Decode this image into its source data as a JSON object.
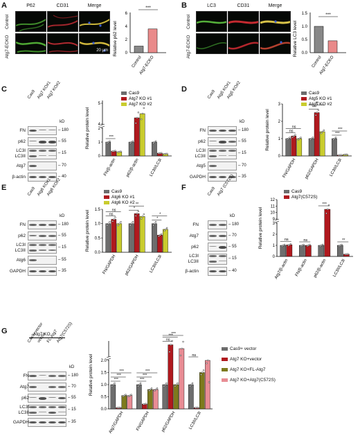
{
  "panels": {
    "A": {
      "letter": "A",
      "headers": [
        "P62",
        "CD31",
        "Merge"
      ],
      "rows": [
        "Control",
        "Atg7-ECKO"
      ],
      "scale": "20 μm",
      "chart": {
        "ylabel": "Relative p62 level",
        "ticks": [
          "0",
          "2",
          "4",
          "6"
        ],
        "cats": [
          "Control",
          "Atg7-ECKO"
        ],
        "sig": "***"
      }
    },
    "B": {
      "letter": "B",
      "headers": [
        "LC3",
        "CD31",
        "Merge"
      ],
      "rows": [
        "Control",
        "Atg7-ECKO"
      ],
      "chart": {
        "ylabel": "Relative LC3 level",
        "ticks": [
          "0.0",
          "0.5",
          "1.0",
          "1.5"
        ],
        "cats": [
          "Control",
          "Atg7-ECKO"
        ],
        "sig": "***"
      }
    },
    "C": {
      "letter": "C",
      "lanes": [
        "Cas9",
        "Atg7 KO#1",
        "Atg7 KO#2"
      ],
      "blots": [
        "FN",
        "p62",
        "LC3I",
        "LC3II",
        "Atg7",
        "β-actin"
      ],
      "kd": [
        "kD",
        "– 180",
        "– 55",
        "– 15",
        "– 70",
        "– 40"
      ],
      "legend": [
        "Cas9",
        "Atg7 KO #1",
        "Atg7 KO #2"
      ]
    },
    "D": {
      "letter": "D",
      "lanes": [
        "Cas9",
        "Atg5 KO#1",
        "Atg5 KO#2"
      ],
      "blots": [
        "FN",
        "p62",
        "LC3I",
        "LC3II",
        "Atg5",
        "GAPDH"
      ],
      "kd": [
        "kD",
        "– 180",
        "– 55",
        "– 15",
        "– 70",
        "– 35"
      ],
      "legend": [
        "Cas9",
        "Atg5 KO #1",
        "Atg5 KO #2"
      ]
    },
    "E": {
      "letter": "E",
      "lanes": [
        "Cas9",
        "Atg6 KO#1",
        "Atg6 KO#2"
      ],
      "blots": [
        "FN",
        "p62",
        "LC3I",
        "LC3II",
        "Atg6",
        "GAPDH"
      ],
      "kd": [
        "kD",
        "– 180",
        "– 55",
        "– 15",
        "– 55",
        "– 35"
      ],
      "legend": [
        "Cas9",
        "Atg6 KO #1",
        "Atg6 KO #2"
      ]
    },
    "F": {
      "letter": "F",
      "lanes": [
        "Cas9",
        "Atg7 (C572S)"
      ],
      "blots": [
        "FN",
        "Atg7",
        "p62",
        "LC3I",
        "LC3II",
        "β-actin"
      ],
      "kd": [
        "kD",
        "– 180",
        "– 70",
        "– 55",
        "– 15",
        "– 40"
      ],
      "legend": [
        "Cas9",
        "Atg7(C572S)"
      ]
    },
    "G": {
      "letter": "G",
      "group": "Atg7 KO",
      "lanes": [
        "Cas9+vector",
        "vector",
        "FL-Atg7",
        "Atg7(C572S)"
      ],
      "blots": [
        "FN",
        "Atg7",
        "p62",
        "LC3I",
        "LC3II",
        "GAPDH"
      ],
      "kd": [
        "kD",
        "– 180",
        "– 70",
        "– 55",
        "– 15",
        "– 35"
      ],
      "legend": [
        "Cas9+ vector",
        "Atg7 KO+vector",
        "Atg7 KO+FL-Atg7",
        "Atg7 KO+Atg7(C572S)"
      ]
    }
  },
  "colors": {
    "gray": "#6d6d6d",
    "red": "#b0191e",
    "yellow": "#c9cc2e",
    "olive": "#7d7a1d",
    "pink": "#e88c94"
  },
  "chart_data": [
    {
      "id": "A",
      "type": "bar",
      "title": "",
      "ylabel": "Relative p62 level",
      "categories": [
        "Control",
        "Atg7-ECKO"
      ],
      "values": [
        1.0,
        3.6
      ],
      "ylim": [
        0,
        6
      ],
      "annotations": [
        "***"
      ]
    },
    {
      "id": "B",
      "type": "bar",
      "title": "",
      "ylabel": "Relative LC3 level",
      "categories": [
        "Control",
        "Atg7-ECKO"
      ],
      "values": [
        1.0,
        0.45
      ],
      "ylim": [
        0,
        1.5
      ],
      "annotations": [
        "***"
      ]
    },
    {
      "id": "C",
      "type": "bar",
      "ylabel": "Relative protein level",
      "categories": [
        "FN/β-actin",
        "p62/β-actin",
        "LC3II/LC3I"
      ],
      "series": [
        {
          "name": "Cas9",
          "values": [
            1.0,
            1.0,
            1.0
          ]
        },
        {
          "name": "Atg7 KO #1",
          "values": [
            0.35,
            4.3,
            0.2
          ]
        },
        {
          "name": "Atg7 KO #2",
          "values": [
            0.3,
            4.5,
            0.15
          ]
        }
      ],
      "ylim": [
        0,
        5
      ],
      "axis_break": true,
      "ticks": [
        "0",
        "1",
        "2",
        "4",
        "5"
      ],
      "annotations": [
        "***"
      ]
    },
    {
      "id": "D",
      "type": "bar",
      "ylabel": "Relative protein level",
      "categories": [
        "FN/GAPDH",
        "p62/GAPDH",
        "LC3II/LC3I"
      ],
      "series": [
        {
          "name": "Cas9",
          "values": [
            1.0,
            1.0,
            1.0
          ]
        },
        {
          "name": "Atg5 KO #1",
          "values": [
            1.15,
            2.5,
            0.05
          ]
        },
        {
          "name": "Atg5 KO #2",
          "values": [
            1.0,
            1.4,
            0.08
          ]
        }
      ],
      "ylim": [
        0,
        3
      ],
      "ticks": [
        "0",
        "1",
        "2",
        "3"
      ],
      "annotations": [
        "ns",
        "ns",
        "***",
        "**",
        "***",
        "***"
      ]
    },
    {
      "id": "E",
      "type": "bar",
      "ylabel": "Relative protein level",
      "categories": [
        "FN/GAPDH",
        "p62/GAPDH",
        "LC3II/LC3I"
      ],
      "series": [
        {
          "name": "Cas9",
          "values": [
            1.0,
            1.0,
            1.0
          ]
        },
        {
          "name": "Atg6 KO #1",
          "values": [
            1.15,
            1.35,
            0.6
          ]
        },
        {
          "name": "Atg6 KO #2",
          "values": [
            1.0,
            1.25,
            0.8
          ]
        }
      ],
      "ylim": [
        0,
        1.5
      ],
      "ticks": [
        "0.0",
        "0.5",
        "1.0",
        "1.5"
      ],
      "annotations": [
        "ns",
        "ns",
        "*",
        "**",
        "*",
        "*"
      ]
    },
    {
      "id": "F",
      "type": "bar",
      "ylabel": "Relative protein level",
      "categories": [
        "Atg7/β-actin",
        "FN/β-actin",
        "p62/β-actin",
        "LC3II/LC3I"
      ],
      "series": [
        {
          "name": "Cas9",
          "values": [
            1.0,
            1.0,
            1.0,
            1.0
          ]
        },
        {
          "name": "Atg7(C572S)",
          "values": [
            1.05,
            1.0,
            10.5,
            0.2
          ]
        }
      ],
      "ylim": [
        0,
        12
      ],
      "axis_break": true,
      "ticks": [
        "0",
        "1",
        "2",
        "3",
        "9",
        "10",
        "11",
        "12"
      ],
      "annotations": [
        "ns",
        "ns",
        "***",
        "**"
      ]
    },
    {
      "id": "G",
      "type": "bar",
      "ylabel": "Relative protein level",
      "categories": [
        "Atg7/GAPDH",
        "FN/GAPDH",
        "p62/GAPDH",
        "LC3II/LC3I"
      ],
      "series": [
        {
          "name": "Cas9+ vector",
          "values": [
            1.0,
            1.0,
            1.0,
            1.0
          ]
        },
        {
          "name": "Atg7 KO+vector",
          "values": [
            0.05,
            0.2,
            3.1,
            0.05
          ]
        },
        {
          "name": "Atg7 KO+FL-Atg7",
          "values": [
            0.55,
            0.8,
            1.0,
            1.5
          ]
        },
        {
          "name": "Atg7 KO+Atg7(C572S)",
          "values": [
            0.55,
            0.8,
            3.0,
            2.0
          ]
        }
      ],
      "ylim": [
        0,
        3.2
      ],
      "axis_break": true,
      "ticks": [
        "0.0",
        "0.5",
        "1.0",
        "1.5",
        "2.0"
      ],
      "annotations": [
        "***",
        "***",
        "***",
        "***",
        "***",
        "***",
        "ns",
        "***",
        "***",
        "ns"
      ]
    }
  ]
}
